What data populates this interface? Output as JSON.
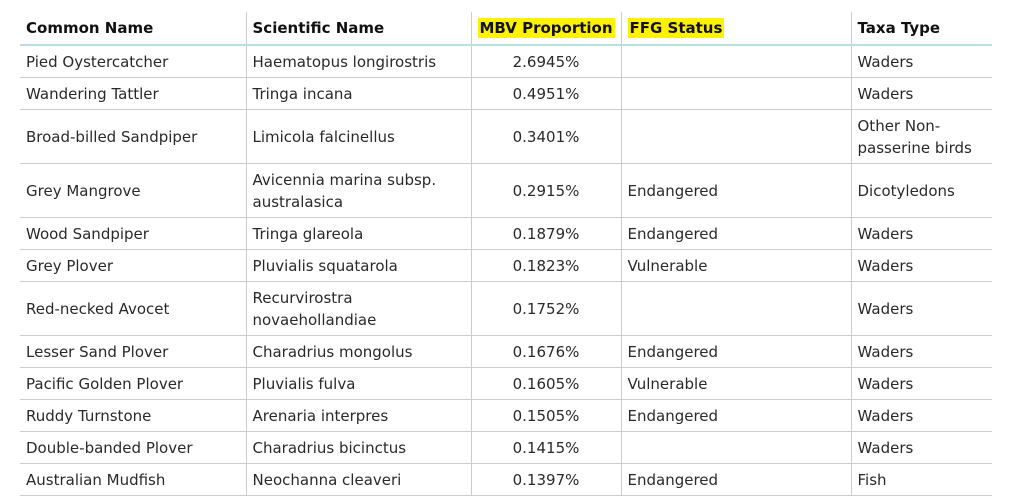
{
  "table": {
    "headers": [
      "Common Name",
      "Scientific Name",
      "MBV Proportion",
      "FFG Status",
      "Taxa Type"
    ],
    "rows": [
      [
        "Pied Oystercatcher",
        "Haematopus longirostris",
        "2.6945%",
        "",
        "Waders"
      ],
      [
        "Wandering Tattler",
        "Tringa incana",
        "0.4951%",
        "",
        "Waders"
      ],
      [
        "Broad-billed Sandpiper",
        "Limicola falcinellus",
        "0.3401%",
        "",
        "Other Non-passerine birds"
      ],
      [
        "Grey Mangrove",
        "Avicennia marina subsp. australasica",
        "0.2915%",
        "Endangered",
        "Dicotyledons"
      ],
      [
        "Wood Sandpiper",
        "Tringa glareola",
        "0.1879%",
        "Endangered",
        "Waders"
      ],
      [
        "Grey Plover",
        "Pluvialis squatarola",
        "0.1823%",
        "Vulnerable",
        "Waders"
      ],
      [
        "Red-necked Avocet",
        "Recurvirostra novaehollandiae",
        "0.1752%",
        "",
        "Waders"
      ],
      [
        "Lesser Sand Plover",
        "Charadrius mongolus",
        "0.1676%",
        "Endangered",
        "Waders"
      ],
      [
        "Pacific Golden Plover",
        "Pluvialis fulva",
        "0.1605%",
        "Vulnerable",
        "Waders"
      ],
      [
        "Ruddy Turnstone",
        "Arenaria interpres",
        "0.1505%",
        "Endangered",
        "Waders"
      ],
      [
        "Double-banded Plover",
        "Charadrius bicinctus",
        "0.1415%",
        "",
        "Waders"
      ],
      [
        "Australian Mudfish",
        "Neochanna cleaveri",
        "0.1397%",
        "Endangered",
        "Fish"
      ]
    ]
  },
  "colors": {
    "highlight": "#fff200",
    "header_rule": "#b9e0e0",
    "grid": "#cccccc"
  }
}
